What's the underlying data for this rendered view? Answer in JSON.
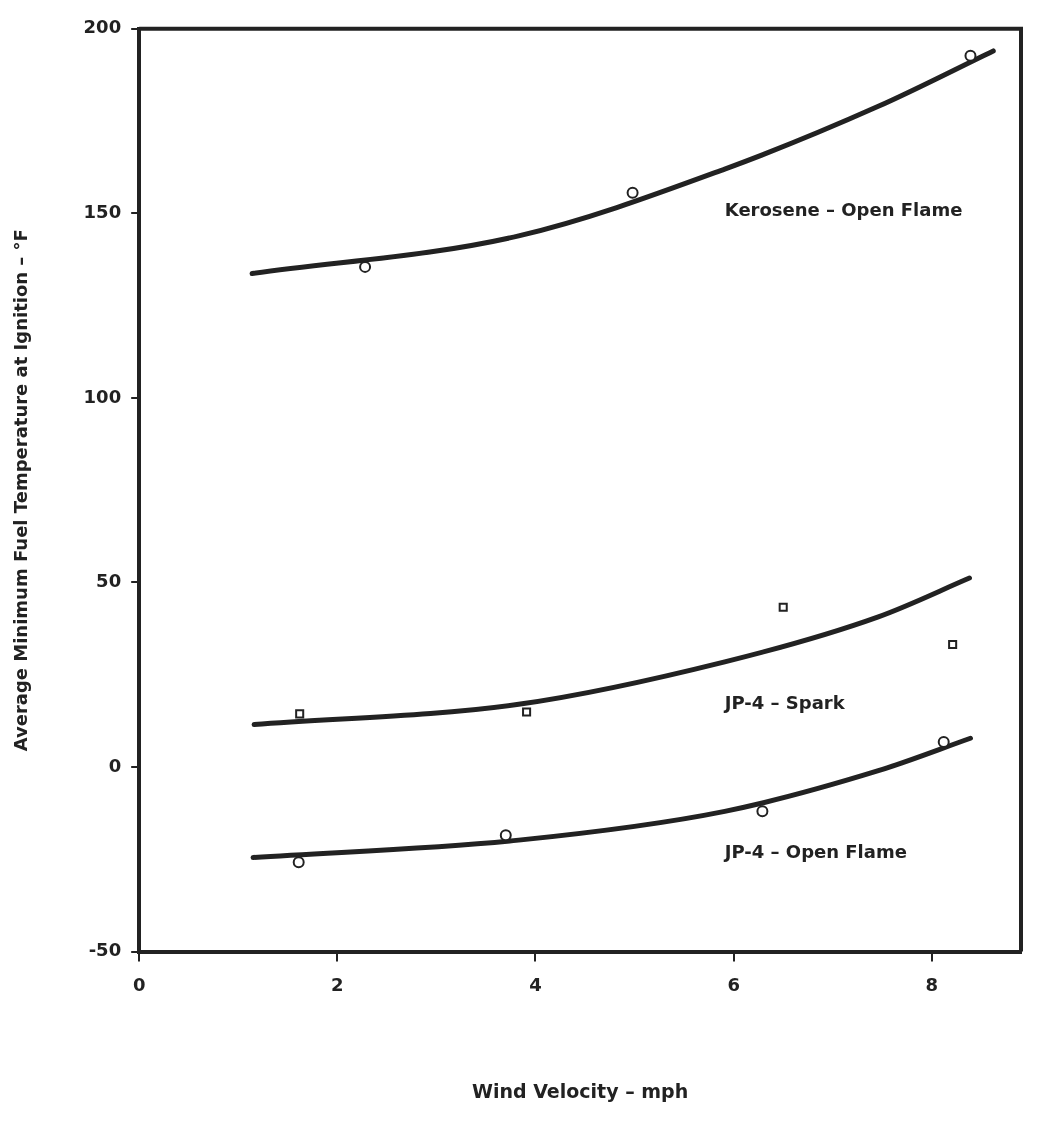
{
  "chart_data": {
    "type": "scatter",
    "xlabel": "Wind Velocity – mph",
    "ylabel": "Average Minimum Fuel Temperature at Ignition – °F",
    "xlim": [
      0,
      8.9
    ],
    "ylim": [
      -50,
      200
    ],
    "xticks": [
      0,
      2,
      4,
      6,
      8
    ],
    "yticks": [
      -50,
      0,
      50,
      100,
      150,
      200
    ],
    "grid": false,
    "legend": false,
    "series": [
      {
        "type": "scatter",
        "marker": "circle",
        "color": "#222222",
        "x": [
          2.28,
          4.98,
          8.39
        ],
        "values": [
          135.5,
          155.6,
          192.7
        ]
      },
      {
        "type": "line",
        "name": "Kerosene – Open Flame",
        "marker": "none",
        "color": "#222222",
        "x": [
          1.14,
          3.83,
          5.91,
          7.46,
          8.62
        ],
        "values": [
          133.7,
          143.9,
          162,
          179,
          194
        ]
      },
      {
        "type": "scatter",
        "marker": "square",
        "color": "#222222",
        "x": [
          1.62,
          3.91,
          6.5,
          8.21
        ],
        "values": [
          14.4,
          14.9,
          43.3,
          33.2
        ]
      },
      {
        "type": "line",
        "name": "JP-4 – Spark",
        "marker": "none",
        "color": "#222222",
        "x": [
          1.16,
          3.83,
          5.91,
          7.46,
          8.38
        ],
        "values": [
          11.5,
          17,
          28.5,
          40.7,
          51.2
        ]
      },
      {
        "type": "scatter",
        "marker": "circle",
        "color": "#222222",
        "x": [
          1.61,
          3.7,
          6.29,
          8.12
        ],
        "values": [
          -25.8,
          -18.5,
          -12,
          6.8
        ]
      },
      {
        "type": "line",
        "name": "JP-4 – Open Flame",
        "marker": "none",
        "color": "#222222",
        "x": [
          1.15,
          3.83,
          5.91,
          7.46,
          8.39
        ],
        "values": [
          -24.5,
          -19.8,
          -12,
          -1,
          7.8
        ]
      }
    ]
  }
}
